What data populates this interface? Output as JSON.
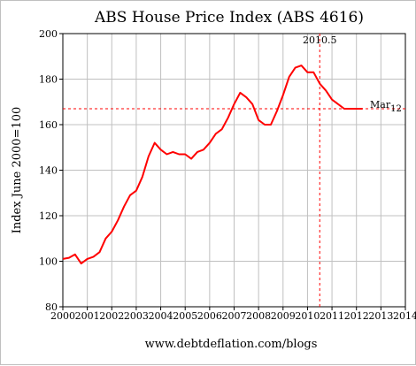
{
  "chart_data": {
    "type": "line",
    "title": "ABS House Price Index (ABS 4616)",
    "ylabel": "Index June 2000=100",
    "xlabel": "",
    "footer": "www.debtdeflation.com/blogs",
    "xlim": [
      2000,
      2014
    ],
    "ylim": [
      80,
      200
    ],
    "x_ticks": [
      2000,
      2001,
      2002,
      2003,
      2004,
      2005,
      2006,
      2007,
      2008,
      2009,
      2010,
      2011,
      2012,
      2013,
      2014
    ],
    "y_ticks": [
      80,
      100,
      120,
      140,
      160,
      180,
      200
    ],
    "grid": true,
    "colors": {
      "series": "#ff0000",
      "reference": "#ff0000",
      "grid": "#c0c0c0"
    },
    "annotations": {
      "peak": {
        "label": "2010.5",
        "x": 2010.5
      },
      "current": {
        "label": "Mar",
        "subscript": "12",
        "y": 167
      }
    },
    "series": [
      {
        "x": [
          2000.0,
          2000.25,
          2000.5,
          2000.75,
          2001.0,
          2001.25,
          2001.5,
          2001.75,
          2002.0,
          2002.25,
          2002.5,
          2002.75,
          2003.0,
          2003.25,
          2003.5,
          2003.75,
          2004.0,
          2004.25,
          2004.5,
          2004.75,
          2005.0,
          2005.25,
          2005.5,
          2005.75,
          2006.0,
          2006.25,
          2006.5,
          2006.75,
          2007.0,
          2007.25,
          2007.5,
          2007.75,
          2008.0,
          2008.25,
          2008.5,
          2008.75,
          2009.0,
          2009.25,
          2009.5,
          2009.75,
          2010.0,
          2010.25,
          2010.5,
          2010.75,
          2011.0,
          2011.25,
          2011.5,
          2011.75,
          2012.0,
          2012.25
        ],
        "values": [
          101,
          101.5,
          103,
          99,
          101,
          102,
          104,
          110,
          113,
          118,
          124,
          129,
          131,
          137,
          146,
          152,
          149,
          147,
          148,
          147,
          147,
          145,
          148,
          149,
          152,
          156,
          158,
          163,
          169,
          174,
          172,
          169,
          162,
          160,
          160,
          166,
          173,
          181,
          185,
          186,
          183,
          183,
          178,
          175,
          171,
          169,
          167,
          167,
          167,
          167
        ]
      }
    ]
  }
}
